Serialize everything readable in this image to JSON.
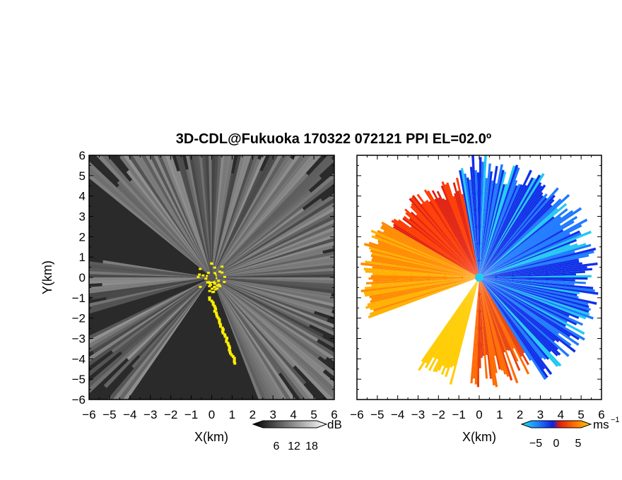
{
  "chart_data": {
    "title": "3D-CDL@Fukuoka 170322 072121 PPI EL=02.0º",
    "panels": [
      {
        "type": "heatmap",
        "quantity": "reflectivity/SNR",
        "xlabel": "X(km)",
        "ylabel": "Y(km)",
        "xlim": [
          -6,
          6
        ],
        "ylim": [
          -6,
          6
        ],
        "xticks": [
          "−6",
          "−5",
          "−4",
          "−3",
          "−2",
          "−1",
          "0",
          "1",
          "2",
          "3",
          "4",
          "5",
          "6"
        ],
        "yticks": [
          "6",
          "5",
          "4",
          "3",
          "2",
          "1",
          "0",
          "−1",
          "−2",
          "−3",
          "−4",
          "−5",
          "−6"
        ],
        "background": "#2a2a2a",
        "colorbar": {
          "unit": "dB",
          "ticks": [
            "6",
            "12",
            "18"
          ],
          "range": [
            0,
            24
          ],
          "colormap": "gray"
        },
        "highlight_color": "#ffee00",
        "center_marker_color": "#555555"
      },
      {
        "type": "heatmap",
        "quantity": "Doppler velocity",
        "xlabel": "X(km)",
        "ylabel": "",
        "xlim": [
          -6,
          6
        ],
        "ylim": [
          -6,
          6
        ],
        "xticks": [
          "−6",
          "−5",
          "−4",
          "−3",
          "−2",
          "−1",
          "0",
          "1",
          "2",
          "3",
          "4",
          "5",
          "6"
        ],
        "background": "#ffffff",
        "colorbar": {
          "unit": "ms",
          "unit_exponent": "−1",
          "ticks": [
            "−5",
            "0",
            "5"
          ],
          "range": [
            -7.5,
            7.5
          ],
          "colormap": "cyan-blue-red-orange"
        },
        "center_marker_color": "#22ccee"
      }
    ]
  }
}
